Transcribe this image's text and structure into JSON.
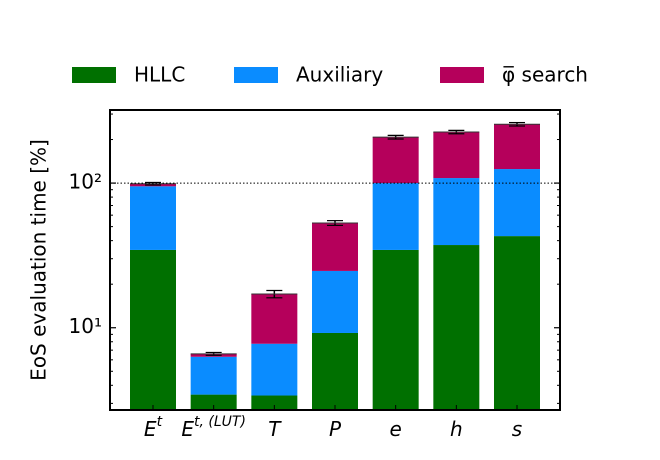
{
  "chart_data": {
    "type": "stacked_bar",
    "ylabel": "EoS evaluation time [%]",
    "categories": [
      "E",
      "E",
      "T",
      "P",
      "e",
      "h",
      "s"
    ],
    "category_superscripts": [
      "t",
      "t, (LUT)",
      null,
      null,
      null,
      null,
      null
    ],
    "series": [
      {
        "name": "HLLC",
        "color": "#007000",
        "values": [
          34.5,
          3.45,
          3.4,
          9.2,
          34.5,
          37.3,
          43
        ]
      },
      {
        "name": "Auxiliary",
        "color": "#0a8cff",
        "values": [
          60.5,
          2.85,
          4.35,
          15.5,
          65.5,
          71,
          82
        ]
      },
      {
        "name": "φ̅ search",
        "color": "#b5005b",
        "values": [
          4,
          0.3,
          9.35,
          28.3,
          107.6,
          117,
          130
        ],
        "errors": [
          2,
          0.15,
          1,
          2,
          6,
          6,
          7
        ]
      }
    ],
    "log_scale": true,
    "ylim": [
      2.7,
      320
    ],
    "yticks": [
      {
        "value": 10,
        "label": "10¹"
      },
      {
        "value": 100,
        "label": "10²"
      }
    ],
    "reference_line": 100,
    "legend": "top"
  }
}
